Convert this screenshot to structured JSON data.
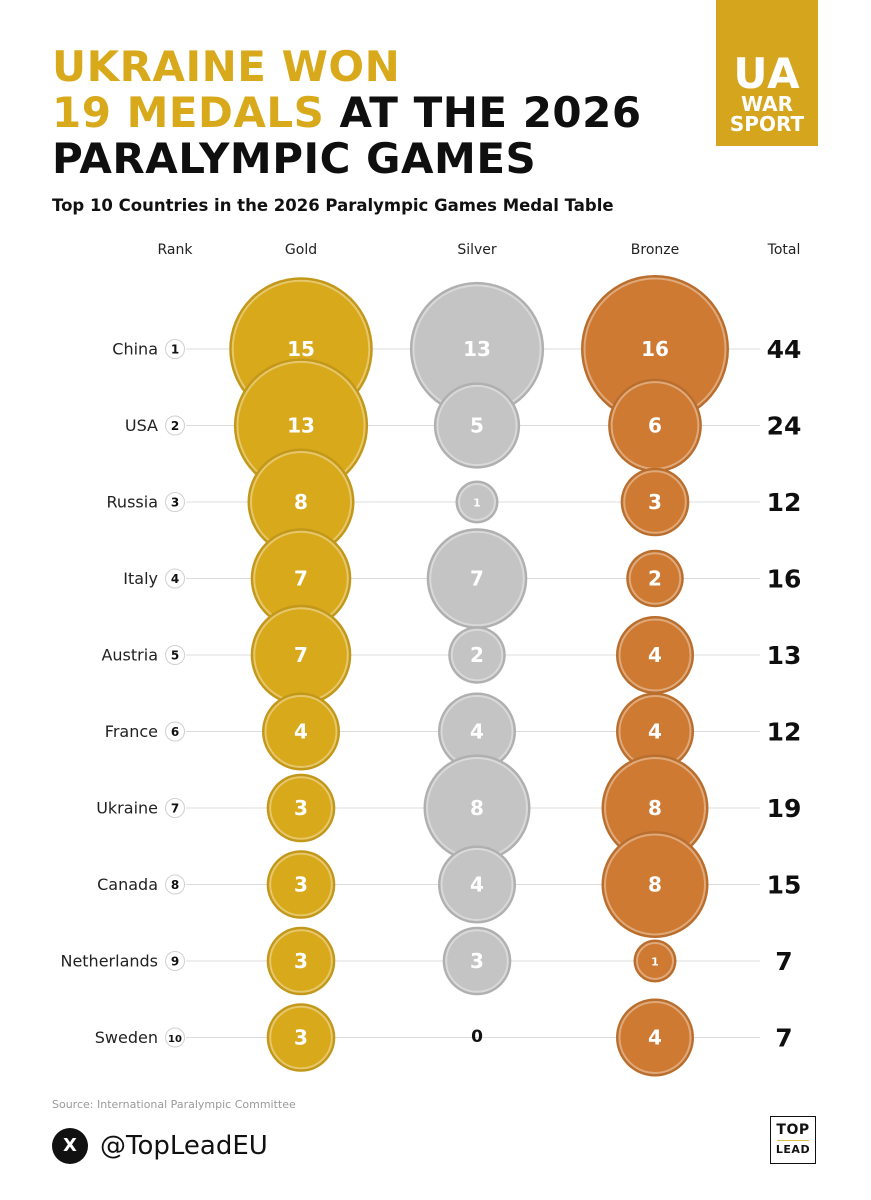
{
  "headline": {
    "line1": "UKRAINE WON",
    "line2_highlight": "19 MEDALS",
    "line2_rest": " AT THE 2026",
    "line3": "PARALYMPIC GAMES"
  },
  "logo": {
    "line1": "UA",
    "line2": "WAR",
    "line3": "SPORT"
  },
  "footer": {
    "source": "Source: International Paralympic Committee",
    "x_icon": "X",
    "handle": "@TopLeadEU",
    "brand_top": "TOP",
    "brand_bottom": "LEAD"
  },
  "colors": {
    "gold": "#d9a91c",
    "silver": "#c4c4c4",
    "bronze": "#cf7a33",
    "accent": "#d6a51e"
  },
  "chart_data": {
    "type": "table",
    "title": "Top 10 Countries in the 2026 Paralympic Games Medal Table",
    "columns": [
      "Rank",
      "Gold",
      "Silver",
      "Bronze",
      "Total"
    ],
    "rows": [
      {
        "rank": 1,
        "country": "China",
        "gold": 15,
        "silver": 13,
        "bronze": 16,
        "total": 44
      },
      {
        "rank": 2,
        "country": "USA",
        "gold": 13,
        "silver": 5,
        "bronze": 6,
        "total": 24
      },
      {
        "rank": 3,
        "country": "Russia",
        "gold": 8,
        "silver": 1,
        "bronze": 3,
        "total": 12
      },
      {
        "rank": 4,
        "country": "Italy",
        "gold": 7,
        "silver": 7,
        "bronze": 2,
        "total": 16
      },
      {
        "rank": 5,
        "country": "Austria",
        "gold": 7,
        "silver": 2,
        "bronze": 4,
        "total": 13
      },
      {
        "rank": 6,
        "country": "France",
        "gold": 4,
        "silver": 4,
        "bronze": 4,
        "total": 12
      },
      {
        "rank": 7,
        "country": "Ukraine",
        "gold": 3,
        "silver": 8,
        "bronze": 8,
        "total": 19
      },
      {
        "rank": 8,
        "country": "Canada",
        "gold": 3,
        "silver": 4,
        "bronze": 8,
        "total": 15
      },
      {
        "rank": 9,
        "country": "Netherlands",
        "gold": 3,
        "silver": 3,
        "bronze": 1,
        "total": 7
      },
      {
        "rank": 10,
        "country": "Sweden",
        "gold": 3,
        "silver": 0,
        "bronze": 4,
        "total": 7
      }
    ]
  }
}
